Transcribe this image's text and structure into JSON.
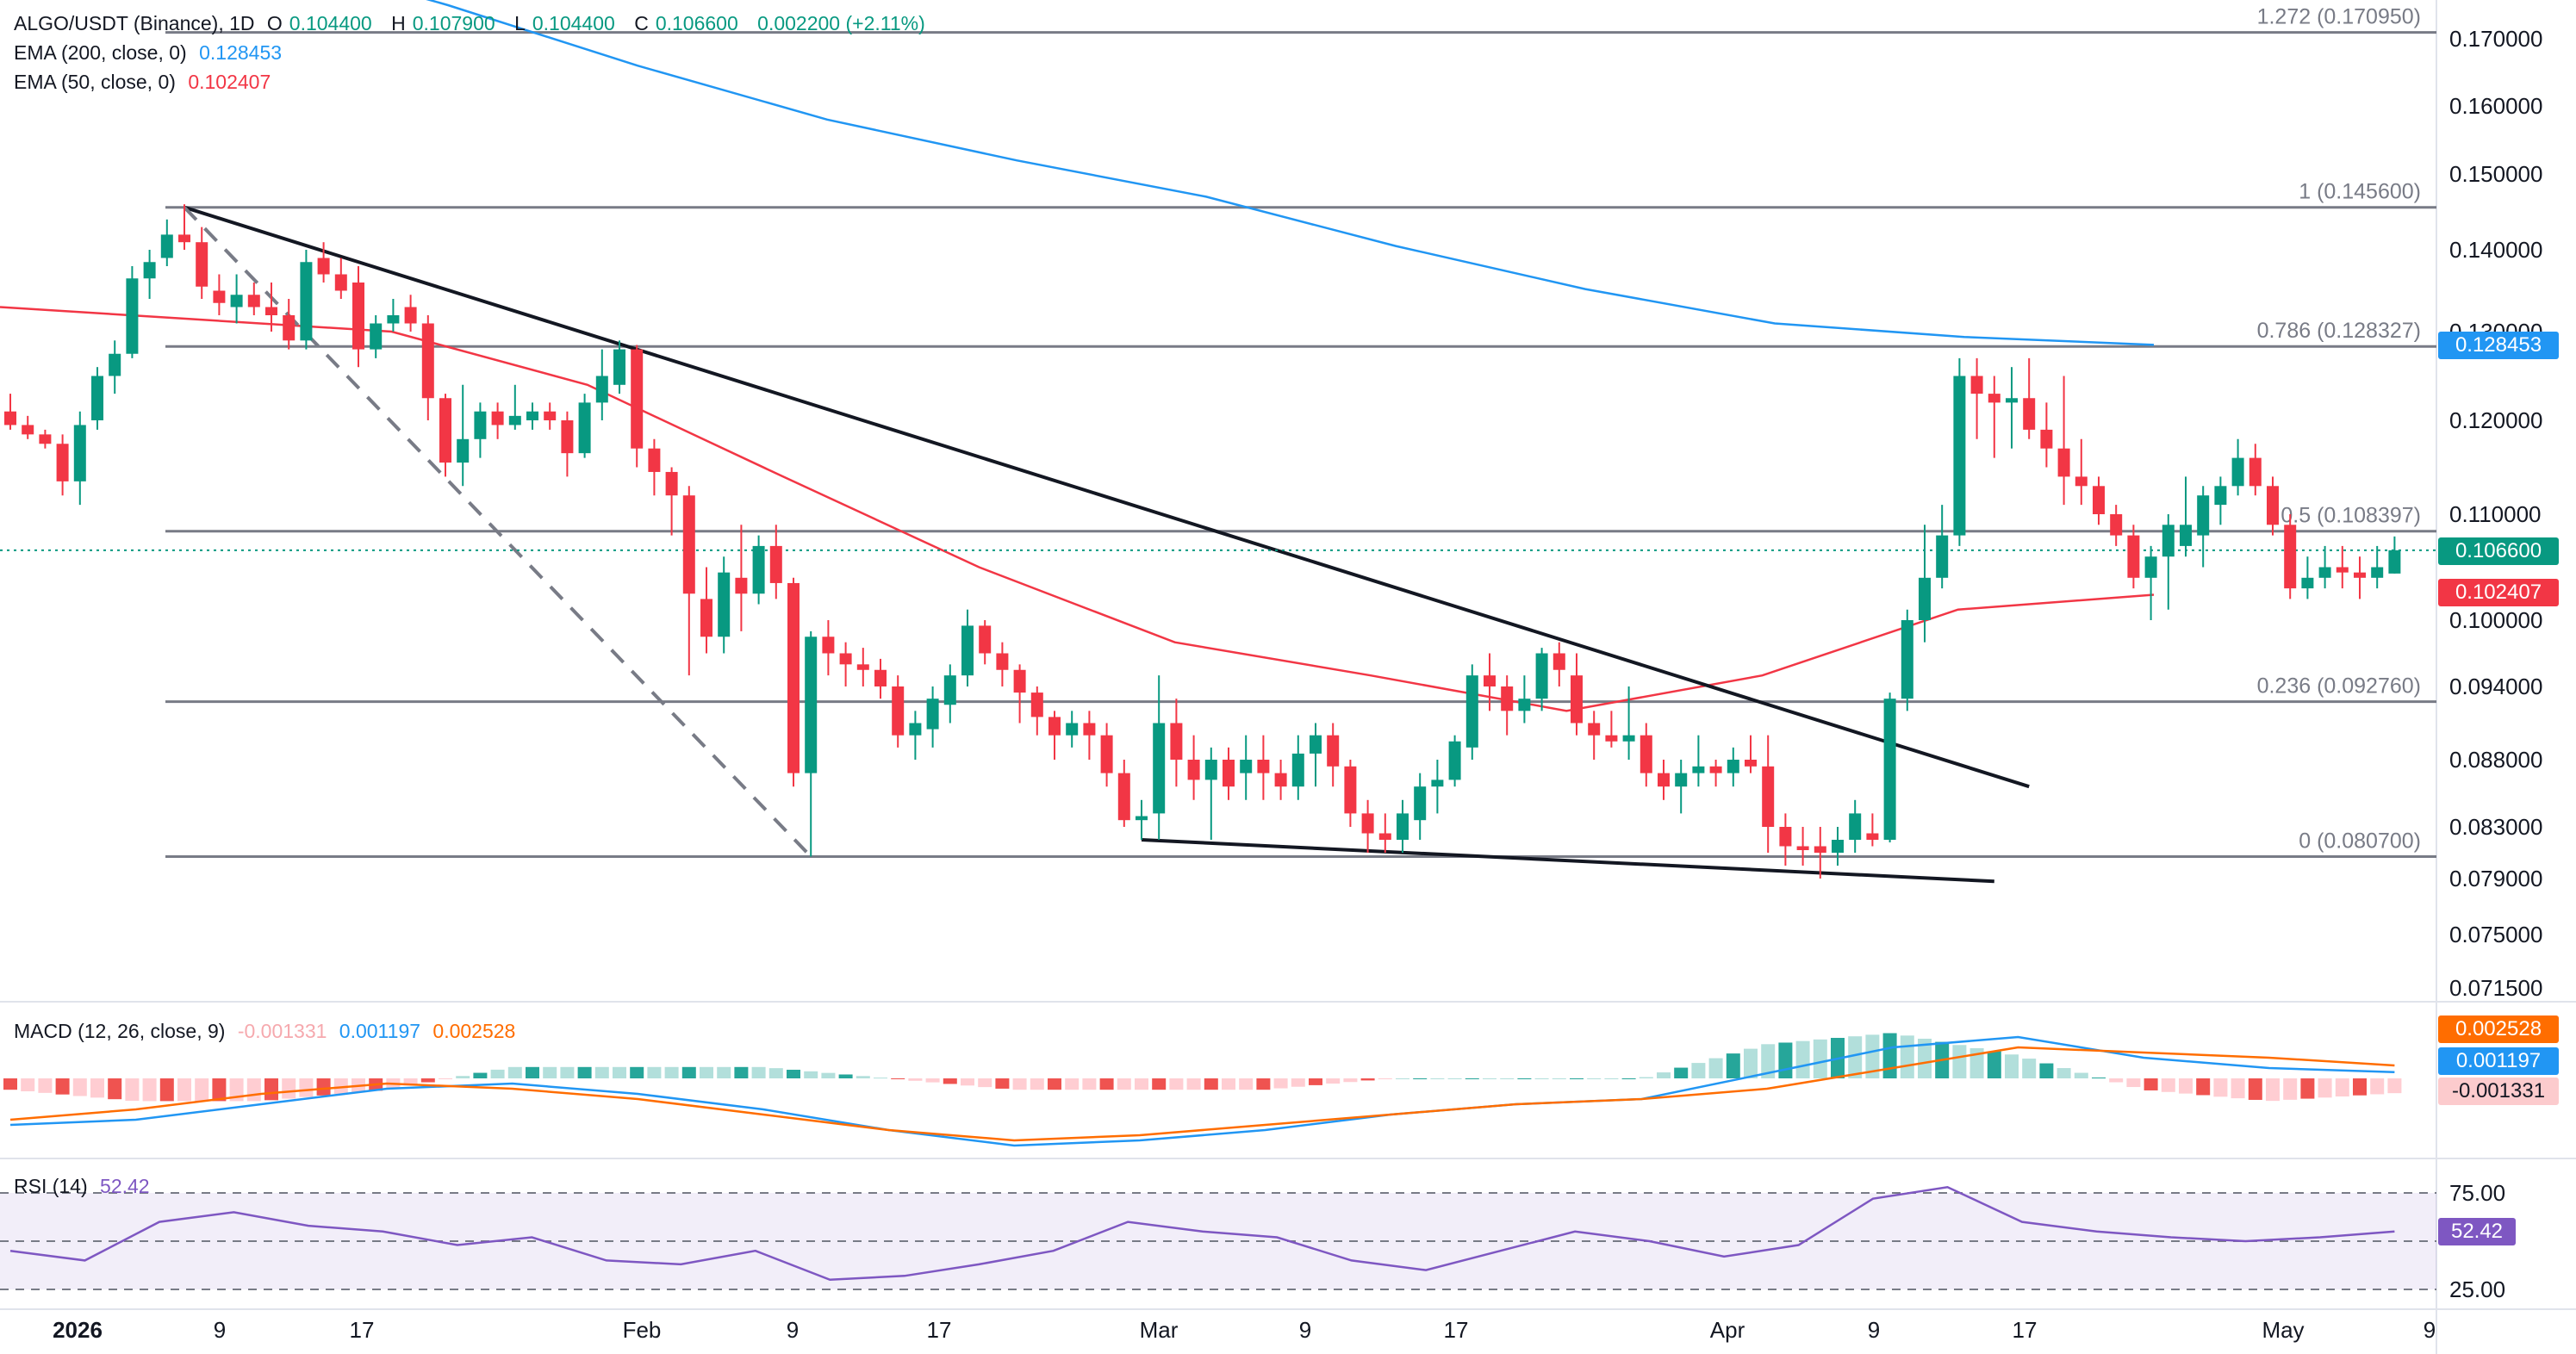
{
  "legend": {
    "symbol": "ALGO/USDT (Binance), 1D",
    "o_label": "O",
    "o": "0.104400",
    "h_label": "H",
    "h": "0.107900",
    "l_label": "L",
    "l": "0.104400",
    "c_label": "C",
    "c": "0.106600",
    "change": "0.002200 (+2.11%)",
    "ema200_label": "EMA (200, close, 0)",
    "ema200_value": "0.128453",
    "ema50_label": "EMA (50, close, 0)",
    "ema50_value": "0.102407",
    "macd_label": "MACD (12, 26, close, 9)",
    "macd_hist": "-0.001331",
    "macd_line": "0.001197",
    "macd_signal": "0.002528",
    "rsi_label": "RSI (14)",
    "rsi_value": "52.42"
  },
  "badges": {
    "ema200": "0.128453",
    "close": "0.106600",
    "ema50": "0.102407",
    "macd_signal": "0.002528",
    "macd_line": "0.001197",
    "macd_hist": "-0.001331",
    "rsi": "52.42"
  },
  "colors": {
    "up": "#089981",
    "down": "#f23645",
    "ema200": "#2196f3",
    "ema50": "#f23645",
    "macd": "#2196f3",
    "signal": "#ff6d00",
    "rsi": "#7e57c2",
    "fib": "#787b86"
  },
  "chart_data": {
    "type": "candlestick",
    "symbol": "ALGO/USDT (Binance), 1D",
    "y_ticks": [
      "0.170000",
      "0.160000",
      "0.150000",
      "0.140000",
      "0.130000",
      "0.120000",
      "0.110000",
      "0.100000",
      "0.094000",
      "0.088000",
      "0.083000",
      "0.079000",
      "0.075000",
      "0.071500"
    ],
    "x_ticks": [
      "2026",
      "9",
      "17",
      "Feb",
      "9",
      "17",
      "Mar",
      "9",
      "17",
      "Apr",
      "9",
      "17",
      "May",
      "9"
    ],
    "fib_levels": [
      {
        "label": "1.272 (0.170950)",
        "value": 0.17095
      },
      {
        "label": "1 (0.145600)",
        "value": 0.1456
      },
      {
        "label": "0.786 (0.128327)",
        "value": 0.128327
      },
      {
        "label": "0.5 (0.108397)",
        "value": 0.108397
      },
      {
        "label": "0.236 (0.092760)",
        "value": 0.09276
      },
      {
        "label": "0 (0.080700)",
        "value": 0.0807
      }
    ],
    "candles": [
      [
        0.121,
        0.123,
        0.119,
        0.1195
      ],
      [
        0.1195,
        0.1205,
        0.118,
        0.1185
      ],
      [
        0.1185,
        0.119,
        0.117,
        0.1175
      ],
      [
        0.1175,
        0.1185,
        0.112,
        0.1135
      ],
      [
        0.1135,
        0.121,
        0.111,
        0.1195
      ],
      [
        0.12,
        0.126,
        0.119,
        0.125
      ],
      [
        0.125,
        0.129,
        0.123,
        0.1275
      ],
      [
        0.1275,
        0.138,
        0.127,
        0.1365
      ],
      [
        0.1365,
        0.14,
        0.134,
        0.1385
      ],
      [
        0.139,
        0.144,
        0.138,
        0.142
      ],
      [
        0.142,
        0.146,
        0.14,
        0.141
      ],
      [
        0.141,
        0.143,
        0.134,
        0.1355
      ],
      [
        0.135,
        0.137,
        0.132,
        0.1335
      ],
      [
        0.133,
        0.137,
        0.131,
        0.1345
      ],
      [
        0.1345,
        0.136,
        0.132,
        0.133
      ],
      [
        0.133,
        0.136,
        0.13,
        0.132
      ],
      [
        0.132,
        0.134,
        0.128,
        0.129
      ],
      [
        0.129,
        0.14,
        0.128,
        0.1385
      ],
      [
        0.139,
        0.141,
        0.136,
        0.137
      ],
      [
        0.137,
        0.139,
        0.134,
        0.135
      ],
      [
        0.136,
        0.138,
        0.126,
        0.128
      ],
      [
        0.128,
        0.132,
        0.127,
        0.131
      ],
      [
        0.131,
        0.134,
        0.13,
        0.132
      ],
      [
        0.133,
        0.1345,
        0.13,
        0.131
      ],
      [
        0.131,
        0.132,
        0.12,
        0.1225
      ],
      [
        0.1225,
        0.123,
        0.114,
        0.1155
      ],
      [
        0.1155,
        0.124,
        0.113,
        0.118
      ],
      [
        0.118,
        0.122,
        0.116,
        0.121
      ],
      [
        0.121,
        0.122,
        0.118,
        0.1195
      ],
      [
        0.1195,
        0.124,
        0.119,
        0.1205
      ],
      [
        0.12,
        0.122,
        0.119,
        0.121
      ],
      [
        0.121,
        0.122,
        0.119,
        0.12
      ],
      [
        0.12,
        0.121,
        0.114,
        0.1165
      ],
      [
        0.1165,
        0.123,
        0.116,
        0.122
      ],
      [
        0.122,
        0.128,
        0.12,
        0.125
      ],
      [
        0.124,
        0.129,
        0.123,
        0.128
      ],
      [
        0.128,
        0.1285,
        0.115,
        0.117
      ],
      [
        0.117,
        0.118,
        0.112,
        0.1145
      ],
      [
        0.1145,
        0.115,
        0.108,
        0.112
      ],
      [
        0.112,
        0.113,
        0.095,
        0.1025
      ],
      [
        0.102,
        0.105,
        0.097,
        0.0985
      ],
      [
        0.0985,
        0.106,
        0.097,
        0.1045
      ],
      [
        0.104,
        0.109,
        0.099,
        0.1025
      ],
      [
        0.1025,
        0.108,
        0.1015,
        0.107
      ],
      [
        0.107,
        0.109,
        0.102,
        0.1035
      ],
      [
        0.1035,
        0.104,
        0.086,
        0.087
      ],
      [
        0.087,
        0.099,
        0.0807,
        0.0985
      ],
      [
        0.0985,
        0.1,
        0.095,
        0.097
      ],
      [
        0.097,
        0.098,
        0.094,
        0.096
      ],
      [
        0.096,
        0.0975,
        0.094,
        0.0955
      ],
      [
        0.0955,
        0.0965,
        0.093,
        0.094
      ],
      [
        0.094,
        0.095,
        0.089,
        0.09
      ],
      [
        0.09,
        0.092,
        0.088,
        0.091
      ],
      [
        0.0905,
        0.094,
        0.089,
        0.093
      ],
      [
        0.0925,
        0.096,
        0.091,
        0.095
      ],
      [
        0.095,
        0.101,
        0.094,
        0.0995
      ],
      [
        0.0995,
        0.1,
        0.096,
        0.097
      ],
      [
        0.097,
        0.098,
        0.094,
        0.0955
      ],
      [
        0.0955,
        0.096,
        0.091,
        0.0935
      ],
      [
        0.0935,
        0.094,
        0.09,
        0.0915
      ],
      [
        0.0915,
        0.092,
        0.088,
        0.09
      ],
      [
        0.09,
        0.092,
        0.089,
        0.091
      ],
      [
        0.091,
        0.092,
        0.088,
        0.09
      ],
      [
        0.09,
        0.091,
        0.086,
        0.087
      ],
      [
        0.087,
        0.088,
        0.083,
        0.0835
      ],
      [
        0.0835,
        0.085,
        0.082,
        0.0838
      ],
      [
        0.084,
        0.095,
        0.082,
        0.091
      ],
      [
        0.091,
        0.093,
        0.086,
        0.088
      ],
      [
        0.088,
        0.09,
        0.085,
        0.0865
      ],
      [
        0.0865,
        0.089,
        0.082,
        0.088
      ],
      [
        0.088,
        0.089,
        0.085,
        0.086
      ],
      [
        0.087,
        0.09,
        0.085,
        0.088
      ],
      [
        0.088,
        0.09,
        0.085,
        0.087
      ],
      [
        0.087,
        0.088,
        0.085,
        0.086
      ],
      [
        0.086,
        0.09,
        0.085,
        0.0885
      ],
      [
        0.0885,
        0.091,
        0.086,
        0.09
      ],
      [
        0.09,
        0.091,
        0.086,
        0.0875
      ],
      [
        0.0875,
        0.088,
        0.083,
        0.084
      ],
      [
        0.084,
        0.085,
        0.081,
        0.0825
      ],
      [
        0.0825,
        0.084,
        0.081,
        0.082
      ],
      [
        0.082,
        0.085,
        0.081,
        0.084
      ],
      [
        0.0835,
        0.087,
        0.082,
        0.086
      ],
      [
        0.086,
        0.088,
        0.084,
        0.0865
      ],
      [
        0.0865,
        0.09,
        0.086,
        0.0895
      ],
      [
        0.089,
        0.096,
        0.088,
        0.095
      ],
      [
        0.095,
        0.097,
        0.092,
        0.094
      ],
      [
        0.094,
        0.095,
        0.09,
        0.092
      ],
      [
        0.092,
        0.095,
        0.091,
        0.093
      ],
      [
        0.093,
        0.0975,
        0.092,
        0.097
      ],
      [
        0.097,
        0.098,
        0.094,
        0.0955
      ],
      [
        0.095,
        0.097,
        0.09,
        0.091
      ],
      [
        0.091,
        0.092,
        0.088,
        0.09
      ],
      [
        0.09,
        0.092,
        0.089,
        0.0895
      ],
      [
        0.0895,
        0.094,
        0.088,
        0.09
      ],
      [
        0.09,
        0.091,
        0.086,
        0.087
      ],
      [
        0.087,
        0.088,
        0.085,
        0.086
      ],
      [
        0.086,
        0.088,
        0.084,
        0.087
      ],
      [
        0.087,
        0.09,
        0.086,
        0.0875
      ],
      [
        0.0875,
        0.088,
        0.086,
        0.087
      ],
      [
        0.087,
        0.089,
        0.086,
        0.088
      ],
      [
        0.088,
        0.09,
        0.087,
        0.0875
      ],
      [
        0.0875,
        0.09,
        0.081,
        0.083
      ],
      [
        0.083,
        0.084,
        0.08,
        0.0815
      ],
      [
        0.0815,
        0.083,
        0.08,
        0.0812
      ],
      [
        0.0815,
        0.083,
        0.079,
        0.081
      ],
      [
        0.081,
        0.083,
        0.08,
        0.082
      ],
      [
        0.082,
        0.085,
        0.081,
        0.084
      ],
      [
        0.0825,
        0.084,
        0.0815,
        0.082
      ],
      [
        0.082,
        0.0935,
        0.0818,
        0.093
      ],
      [
        0.093,
        0.101,
        0.092,
        0.1
      ],
      [
        0.1,
        0.109,
        0.098,
        0.104
      ],
      [
        0.104,
        0.111,
        0.103,
        0.108
      ],
      [
        0.108,
        0.127,
        0.107,
        0.125
      ],
      [
        0.125,
        0.127,
        0.118,
        0.123
      ],
      [
        0.123,
        0.125,
        0.116,
        0.122
      ],
      [
        0.122,
        0.126,
        0.117,
        0.1225
      ],
      [
        0.1225,
        0.127,
        0.118,
        0.119
      ],
      [
        0.119,
        0.122,
        0.115,
        0.117
      ],
      [
        0.117,
        0.125,
        0.111,
        0.114
      ],
      [
        0.114,
        0.118,
        0.111,
        0.113
      ],
      [
        0.113,
        0.114,
        0.109,
        0.11
      ],
      [
        0.11,
        0.111,
        0.107,
        0.108
      ],
      [
        0.108,
        0.109,
        0.103,
        0.104
      ],
      [
        0.104,
        0.107,
        0.1,
        0.106
      ],
      [
        0.106,
        0.11,
        0.101,
        0.109
      ],
      [
        0.107,
        0.114,
        0.106,
        0.109
      ],
      [
        0.108,
        0.113,
        0.105,
        0.112
      ],
      [
        0.111,
        0.114,
        0.109,
        0.113
      ],
      [
        0.113,
        0.118,
        0.112,
        0.116
      ],
      [
        0.116,
        0.1175,
        0.112,
        0.113
      ],
      [
        0.113,
        0.114,
        0.108,
        0.109
      ],
      [
        0.109,
        0.11,
        0.102,
        0.103
      ],
      [
        0.103,
        0.106,
        0.102,
        0.104
      ],
      [
        0.104,
        0.107,
        0.103,
        0.105
      ],
      [
        0.105,
        0.107,
        0.103,
        0.1045
      ],
      [
        0.1045,
        0.106,
        0.102,
        0.104
      ],
      [
        0.104,
        0.107,
        0.103,
        0.105
      ],
      [
        0.1044,
        0.1079,
        0.1044,
        0.1066
      ]
    ],
    "ema200": [
      0.183,
      0.175,
      0.166,
      0.158,
      0.152,
      0.147,
      0.1405,
      0.1352,
      0.131,
      0.1294,
      0.1285
    ],
    "ema50": [
      0.133,
      0.1315,
      0.13,
      0.124,
      0.114,
      0.105,
      0.098,
      0.095,
      0.092,
      0.095,
      0.101,
      0.1024
    ],
    "trendlines": [
      {
        "from": [
          10,
          0.1456
        ],
        "to": [
          116,
          0.086
        ],
        "style": "solid"
      },
      {
        "from": [
          10,
          0.1456
        ],
        "to": [
          46,
          0.0807
        ],
        "style": "dashed"
      },
      {
        "from": [
          65,
          0.082
        ],
        "to": [
          114,
          0.0788
        ],
        "style": "solid"
      }
    ],
    "macd": {
      "label": "MACD (12, 26, close, 9)",
      "macd_line": [
        -0.009,
        -0.008,
        -0.005,
        -0.002,
        -0.001,
        -0.003,
        -0.006,
        -0.01,
        -0.013,
        -0.012,
        -0.01,
        -0.007,
        -0.005,
        -0.004,
        0.001,
        0.006,
        0.008,
        0.004,
        0.002,
        0.0012
      ],
      "signal_line": [
        -0.008,
        -0.006,
        -0.003,
        -0.001,
        -0.002,
        -0.004,
        -0.007,
        -0.01,
        -0.012,
        -0.011,
        -0.009,
        -0.007,
        -0.005,
        -0.004,
        -0.002,
        0.002,
        0.006,
        0.005,
        0.004,
        0.0025
      ],
      "histogram_last": -0.001331
    },
    "rsi": {
      "label": "RSI (14)",
      "upper": 75,
      "lower": 25,
      "mid": 50,
      "y_ticks": [
        "75.00",
        "25.00"
      ],
      "values": [
        45,
        40,
        60,
        65,
        58,
        55,
        48,
        52,
        40,
        38,
        45,
        30,
        32,
        38,
        45,
        60,
        55,
        52,
        40,
        35,
        45,
        55,
        50,
        42,
        48,
        72,
        78,
        60,
        55,
        52,
        50,
        52,
        55
      ]
    }
  }
}
